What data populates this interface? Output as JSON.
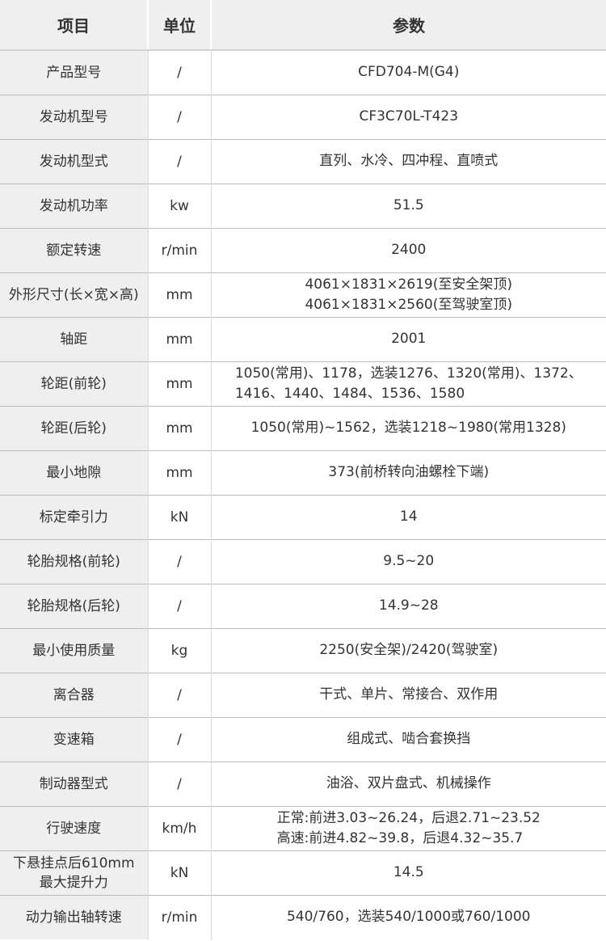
{
  "table": {
    "headers": [
      "项目",
      "单位",
      "参数"
    ],
    "rows": [
      {
        "item": "产品型号",
        "unit": "/",
        "value": "CFD704-M(G4)"
      },
      {
        "item": "发动机型号",
        "unit": "/",
        "value": "CF3C70L-T423"
      },
      {
        "item": "发动机型式",
        "unit": "/",
        "value": "直列、水冷、四冲程、直喷式"
      },
      {
        "item": "发动机功率",
        "unit": "kw",
        "value": "51.5"
      },
      {
        "item": "额定转速",
        "unit": "r/min",
        "value": "2400"
      },
      {
        "item": "外形尺寸(长×宽×高)",
        "unit": "mm",
        "value": "4061×1831×2619(至安全架顶)\n4061×1831×2560(至驾驶室顶)"
      },
      {
        "item": "轴距",
        "unit": "mm",
        "value": "2001"
      },
      {
        "item": "轮距(前轮)",
        "unit": "mm",
        "value": "1050(常用)、1178，选装1276、1320(常用)、1372、\n1416、1440、1484、1536、1580"
      },
      {
        "item": "轮距(后轮)",
        "unit": "mm",
        "value": "1050(常用)~1562，选装1218~1980(常用1328)"
      },
      {
        "item": "最小地隙",
        "unit": "mm",
        "value": "373(前桥转向油螺栓下端)"
      },
      {
        "item": "标定牵引力",
        "unit": "kN",
        "value": "14"
      },
      {
        "item": "轮胎规格(前轮)",
        "unit": "/",
        "value": "9.5~20"
      },
      {
        "item": "轮胎规格(后轮)",
        "unit": "/",
        "value": "14.9~28"
      },
      {
        "item": "最小使用质量",
        "unit": "kg",
        "value": "2250(安全架)/2420(驾驶室)"
      },
      {
        "item": "离合器",
        "unit": "/",
        "value": "干式、单片、常接合、双作用"
      },
      {
        "item": "变速箱",
        "unit": "/",
        "value": "组成式、啮合套换挡"
      },
      {
        "item": "制动器型式",
        "unit": "/",
        "value": "油浴、双片盘式、机械操作"
      },
      {
        "item": "行驶速度",
        "unit": "km/h",
        "value": "正常:前进3.03~26.24，后退2.71~23.52\n高速:前进4.82~39.8，后退4.32~35.7"
      },
      {
        "item": "下悬挂点后610mm\n最大提升力",
        "unit": "kN",
        "value": "14.5"
      },
      {
        "item": "动力输出轴转速",
        "unit": "r/min",
        "value": "540/760，选装540/1000或760/1000"
      }
    ],
    "colors": {
      "header_bg": "#efefef",
      "item_col_bg": "#efefef",
      "row_line": "#bdbdbd",
      "col_line": "#dcdcdc",
      "header_line": "#d2d2d2",
      "text": "#333333"
    }
  }
}
